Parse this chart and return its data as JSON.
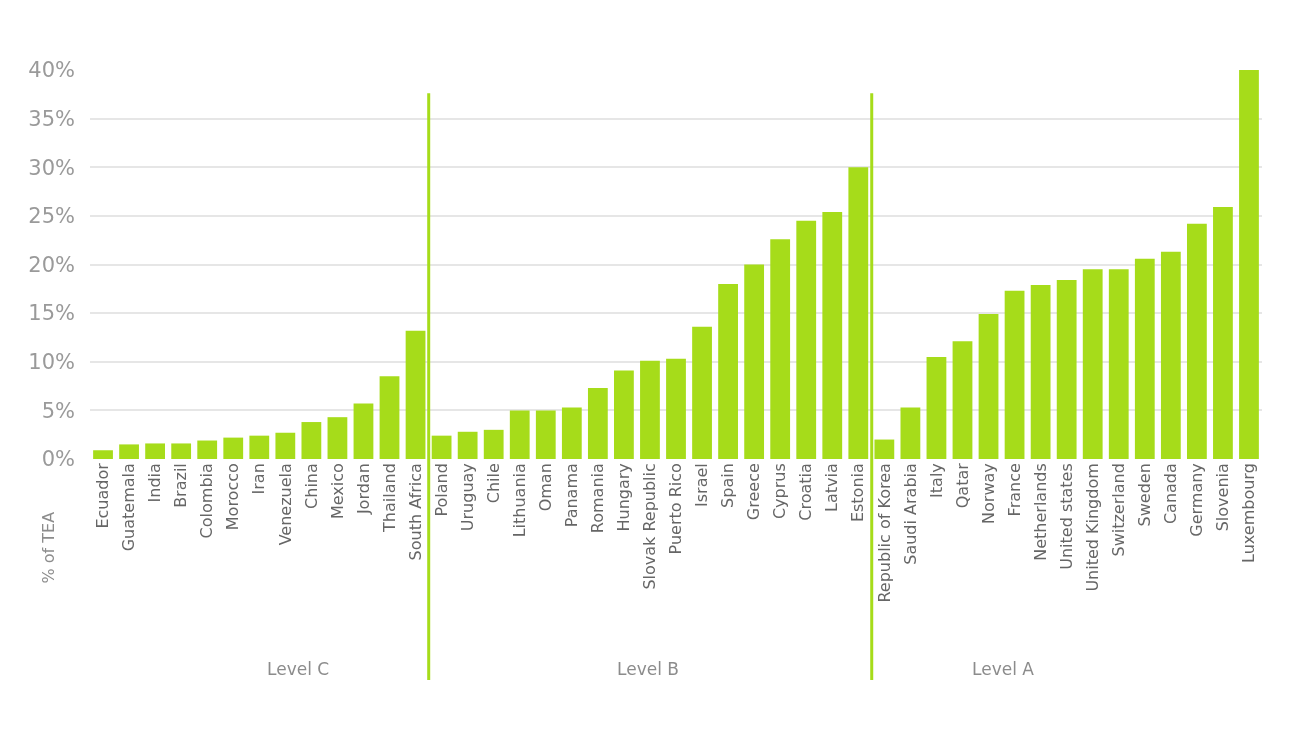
{
  "chart_data": {
    "type": "bar",
    "ylabel": "% of TEA",
    "categories": [
      "Ecuador",
      "Guatemala",
      "India",
      "Brazil",
      "Colombia",
      "Morocco",
      "Iran",
      "Venezuela",
      "China",
      "Mexico",
      "Jordan",
      "Thailand",
      "South Africa",
      "Poland",
      "Uruguay",
      "Chile",
      "Lithuania",
      "Oman",
      "Panama",
      "Romania",
      "Hungary",
      "Slovak Republic",
      "Puerto Rico",
      "Israel",
      "Spain",
      "Greece",
      "Cyprus",
      "Croatia",
      "Latvia",
      "Estonia",
      "Republic of Korea",
      "Saudi Arabia",
      "Italy",
      "Qatar",
      "Norway",
      "France",
      "Netherlands",
      "United states",
      "United Kingdom",
      "Switzerland",
      "Sweden",
      "Canada",
      "Germany",
      "Slovenia",
      "Luxembourg"
    ],
    "values": [
      0.9,
      1.5,
      1.6,
      1.6,
      1.9,
      2.2,
      2.4,
      2.7,
      3.8,
      4.3,
      5.7,
      8.5,
      13.2,
      2.4,
      2.8,
      3.0,
      5.0,
      5.0,
      5.3,
      7.3,
      9.1,
      10.1,
      10.3,
      13.6,
      18.0,
      20.0,
      22.6,
      24.5,
      25.4,
      30.0,
      2.0,
      5.3,
      10.5,
      12.1,
      14.9,
      17.3,
      17.9,
      18.4,
      19.5,
      19.5,
      20.6,
      21.3,
      24.2,
      25.9,
      40.0
    ],
    "color": "#a6dc1a",
    "ylim": [
      0,
      40
    ],
    "yticks": [
      {
        "value": 0,
        "label": "0%"
      },
      {
        "value": 5,
        "label": "5%"
      },
      {
        "value": 10,
        "label": "10%"
      },
      {
        "value": 15,
        "label": "15%"
      },
      {
        "value": 20,
        "label": "20%"
      },
      {
        "value": 25,
        "label": "25%"
      },
      {
        "value": 30,
        "label": "30%"
      },
      {
        "value": 35,
        "label": "35%"
      },
      {
        "value": 40,
        "label": "40%"
      }
    ],
    "grid": "y",
    "annotations": [
      "Level C",
      "Level B",
      "Level A"
    ]
  }
}
